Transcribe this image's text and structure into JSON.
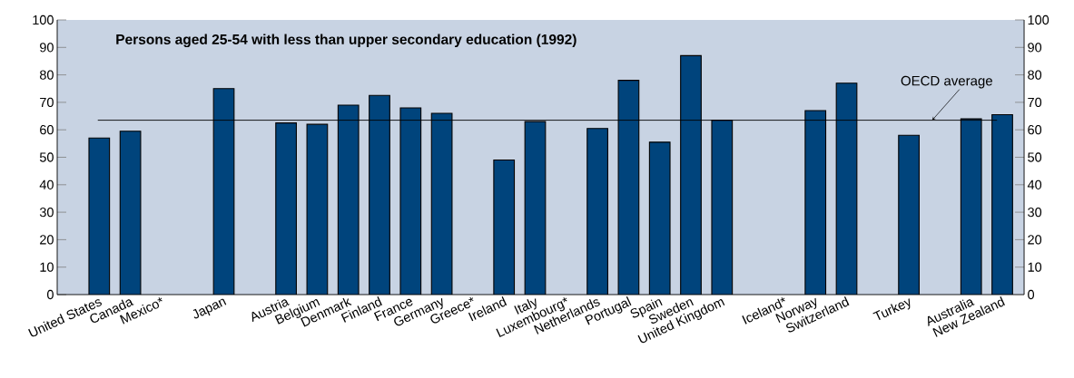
{
  "chart_data": {
    "type": "bar",
    "title": "Persons aged 25-54 with less than upper secondary education (1992)",
    "categories": [
      "United States",
      "Canada",
      "Mexico*",
      null,
      "Japan",
      null,
      "Austria",
      "Belgium",
      "Denmark",
      "Finland",
      "France",
      "Germany",
      "Greece*",
      "Ireland",
      "Italy",
      "Luxembourg*",
      "Netherlands",
      "Portugal",
      "Spain",
      "Sweden",
      "United Kingdom",
      null,
      "Iceland*",
      "Norway",
      "Switzerland",
      null,
      "Turkey",
      null,
      "Australia",
      "New Zealand"
    ],
    "values": [
      57,
      59.5,
      null,
      null,
      75,
      null,
      62.5,
      62,
      69,
      72.5,
      68,
      66,
      null,
      49,
      63,
      null,
      60.5,
      78,
      55.5,
      87,
      63.5,
      null,
      null,
      67,
      77,
      null,
      58,
      null,
      64,
      65.5
    ],
    "color": "#00447c",
    "ylim": [
      0,
      100
    ],
    "yticks": [
      0,
      10,
      20,
      30,
      40,
      50,
      60,
      70,
      80,
      90,
      100
    ],
    "y2lim": [
      0,
      100
    ],
    "y2ticks": [
      0,
      10,
      20,
      30,
      40,
      50,
      60,
      70,
      80,
      90,
      100
    ],
    "ref_lines": [
      {
        "axis": "y",
        "value": 63.5,
        "label": "OECD average"
      }
    ]
  }
}
